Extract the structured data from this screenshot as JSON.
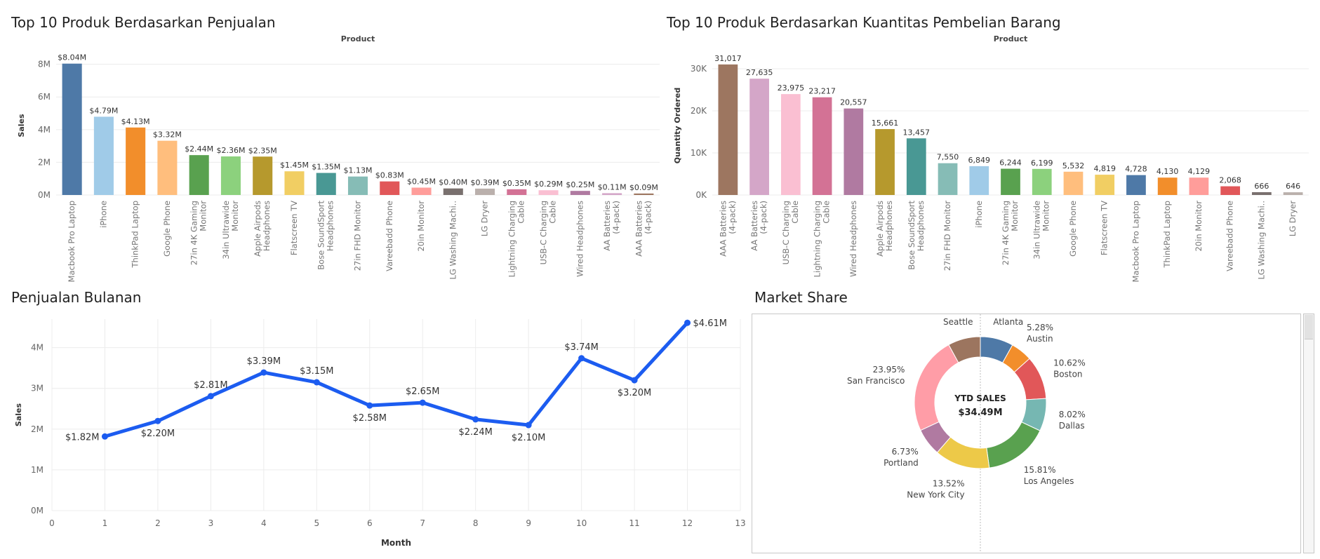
{
  "colors": {
    "tableau": [
      "#4e79a7",
      "#a0cbe8",
      "#f28e2b",
      "#ffbe7d",
      "#59a14f",
      "#8cd17d",
      "#b6992d",
      "#f1ce63",
      "#499894",
      "#86bcb6",
      "#e15759",
      "#ff9d9a",
      "#79706e",
      "#bab0ac",
      "#d37295",
      "#fabfd2",
      "#b07aa1",
      "#d4a6c8",
      "#9d7660",
      "#d7b5a6"
    ],
    "line": "#1c5cf0",
    "grid": "#ececec"
  },
  "charts": {
    "sales_by_product": {
      "panel_title": "Top 10 Produk Berdasarkan Penjualan",
      "chart_data": {
        "type": "bar",
        "title": "Product",
        "xlabel": "",
        "ylabel": "Sales",
        "ylim": [
          0,
          8.5
        ],
        "yticks": [
          0,
          2,
          4,
          6,
          8
        ],
        "ytick_labels": [
          "0M",
          "2M",
          "4M",
          "6M",
          "8M"
        ],
        "categories": [
          [
            "Macbook Pro Laptop"
          ],
          [
            "iPhone"
          ],
          [
            "ThinkPad Laptop"
          ],
          [
            "Google Phone"
          ],
          [
            "27in 4K Gaming",
            "Monitor"
          ],
          [
            "34in Ultrawide",
            "Monitor"
          ],
          [
            "Apple Airpods",
            "Headphones"
          ],
          [
            "Flatscreen TV"
          ],
          [
            "Bose SoundSport",
            "Headphones"
          ],
          [
            "27in FHD Monitor"
          ],
          [
            "Vareebadd Phone"
          ],
          [
            "20in Monitor"
          ],
          [
            "LG Washing Machi.."
          ],
          [
            "LG Dryer"
          ],
          [
            "Lightning Charging",
            "Cable"
          ],
          [
            "USB-C Charging",
            "Cable"
          ],
          [
            "Wired Headphones"
          ],
          [
            "AA Batteries",
            "(4-pack)"
          ],
          [
            "AAA Batteries",
            "(4-pack)"
          ]
        ],
        "values": [
          8.04,
          4.79,
          4.13,
          3.32,
          2.44,
          2.36,
          2.35,
          1.45,
          1.35,
          1.13,
          0.83,
          0.45,
          0.4,
          0.39,
          0.35,
          0.29,
          0.25,
          0.11,
          0.09
        ],
        "data_labels": [
          "$8.04M",
          "$4.79M",
          "$4.13M",
          "$3.32M",
          "$2.44M",
          "$2.36M",
          "$2.35M",
          "$1.45M",
          "$1.35M",
          "$1.13M",
          "$0.83M",
          "$0.45M",
          "$0.40M",
          "$0.39M",
          "$0.35M",
          "$0.29M",
          "$0.25M",
          "$0.11M",
          "$0.09M"
        ],
        "bar_colors": [
          "#4e79a7",
          "#a0cbe8",
          "#f28e2b",
          "#ffbe7d",
          "#59a14f",
          "#8cd17d",
          "#b6992d",
          "#f1ce63",
          "#499894",
          "#86bcb6",
          "#e15759",
          "#ff9d9a",
          "#79706e",
          "#bab0ac",
          "#d37295",
          "#fabfd2",
          "#b07aa1",
          "#d4a6c8",
          "#9d7660"
        ],
        "grid": true
      }
    },
    "quantity_by_product": {
      "panel_title": "Top 10 Produk Berdasarkan Kuantitas Pembelian Barang",
      "chart_data": {
        "type": "bar",
        "title": "Product",
        "xlabel": "",
        "ylabel": "Quantity Ordered",
        "ylim": [
          0,
          33000
        ],
        "yticks": [
          0,
          10000,
          20000,
          30000
        ],
        "ytick_labels": [
          "0K",
          "10K",
          "20K",
          "30K"
        ],
        "categories": [
          [
            "AAA Batteries",
            "(4-pack)"
          ],
          [
            "AA Batteries",
            "(4-pack)"
          ],
          [
            "USB-C Charging",
            "Cable"
          ],
          [
            "Lightning Charging",
            "Cable"
          ],
          [
            "Wired Headphones"
          ],
          [
            "Apple Airpods",
            "Headphones"
          ],
          [
            "Bose SoundSport",
            "Headphones"
          ],
          [
            "27in FHD Monitor"
          ],
          [
            "iPhone"
          ],
          [
            "27in 4K Gaming",
            "Monitor"
          ],
          [
            "34in Ultrawide",
            "Monitor"
          ],
          [
            "Google Phone"
          ],
          [
            "Flatscreen TV"
          ],
          [
            "Macbook Pro Laptop"
          ],
          [
            "ThinkPad Laptop"
          ],
          [
            "20in Monitor"
          ],
          [
            "Vareebadd Phone"
          ],
          [
            "LG Washing Machi.."
          ],
          [
            "LG Dryer"
          ]
        ],
        "values": [
          31017,
          27635,
          23975,
          23217,
          20557,
          15661,
          13457,
          7550,
          6849,
          6244,
          6199,
          5532,
          4819,
          4728,
          4130,
          4129,
          2068,
          666,
          646
        ],
        "data_labels": [
          "31,017",
          "27,635",
          "23,975",
          "23,217",
          "20,557",
          "15,661",
          "13,457",
          "7,550",
          "6,849",
          "6,244",
          "6,199",
          "5,532",
          "4,819",
          "4,728",
          "4,130",
          "4,129",
          "2,068",
          "666",
          "646"
        ],
        "bar_colors": [
          "#9d7660",
          "#d4a6c8",
          "#fabfd2",
          "#d37295",
          "#b07aa1",
          "#b6992d",
          "#499894",
          "#86bcb6",
          "#a0cbe8",
          "#59a14f",
          "#8cd17d",
          "#ffbe7d",
          "#f1ce63",
          "#4e79a7",
          "#f28e2b",
          "#ff9d9a",
          "#e15759",
          "#79706e",
          "#bab0ac"
        ],
        "grid": true
      }
    },
    "monthly_sales": {
      "panel_title": "Penjualan Bulanan",
      "chart_data": {
        "type": "line",
        "title": "",
        "xlabel": "Month",
        "ylabel": "Sales",
        "xlim": [
          0,
          13
        ],
        "xticks": [
          0,
          1,
          2,
          3,
          4,
          5,
          6,
          7,
          8,
          9,
          10,
          11,
          12,
          13
        ],
        "ylim": [
          0,
          4.7
        ],
        "yticks": [
          0,
          1,
          2,
          3,
          4
        ],
        "ytick_labels": [
          "0M",
          "1M",
          "2M",
          "3M",
          "4M"
        ],
        "x": [
          1,
          2,
          3,
          4,
          5,
          6,
          7,
          8,
          9,
          10,
          11,
          12
        ],
        "y": [
          1.82,
          2.2,
          2.81,
          3.39,
          3.15,
          2.58,
          2.65,
          2.24,
          2.1,
          3.74,
          3.2,
          4.61
        ],
        "data_labels": [
          "$1.82M",
          "$2.20M",
          "$2.81M",
          "$3.39M",
          "$3.15M",
          "$2.58M",
          "$2.65M",
          "$2.24M",
          "$2.10M",
          "$3.74M",
          "$3.20M",
          "$4.61M"
        ],
        "label_position": [
          "left",
          "below",
          "above",
          "above",
          "above",
          "below",
          "above",
          "below",
          "below",
          "above",
          "below",
          "right"
        ],
        "grid": true
      }
    },
    "market_share": {
      "panel_title": "Market Share",
      "chart_data": {
        "type": "pie",
        "center_title": "YTD SALES",
        "center_value": "$34.49M",
        "slices": [
          {
            "label": "Atlanta",
            "pct_label": "8.10%",
            "value": 8.1,
            "color": "#4e79a7"
          },
          {
            "label": "Austin",
            "pct_label": "5.28%",
            "value": 5.28,
            "color": "#f28e2b"
          },
          {
            "label": "Boston",
            "pct_label": "10.62%",
            "value": 10.62,
            "color": "#e15759"
          },
          {
            "label": "Dallas",
            "pct_label": "8.02%",
            "value": 8.02,
            "color": "#76b7b2"
          },
          {
            "label": "Los Angeles",
            "pct_label": "15.81%",
            "value": 15.81,
            "color": "#59a14f"
          },
          {
            "label": "New York City",
            "pct_label": "13.52%",
            "value": 13.52,
            "color": "#edc948"
          },
          {
            "label": "Portland",
            "pct_label": "6.73%",
            "value": 6.73,
            "color": "#b07aa1"
          },
          {
            "label": "San Francisco",
            "pct_label": "23.95%",
            "value": 23.95,
            "color": "#ff9da7"
          },
          {
            "label": "Seattle",
            "pct_label": "7.97%",
            "value": 7.97,
            "color": "#9c755f"
          }
        ]
      }
    }
  }
}
